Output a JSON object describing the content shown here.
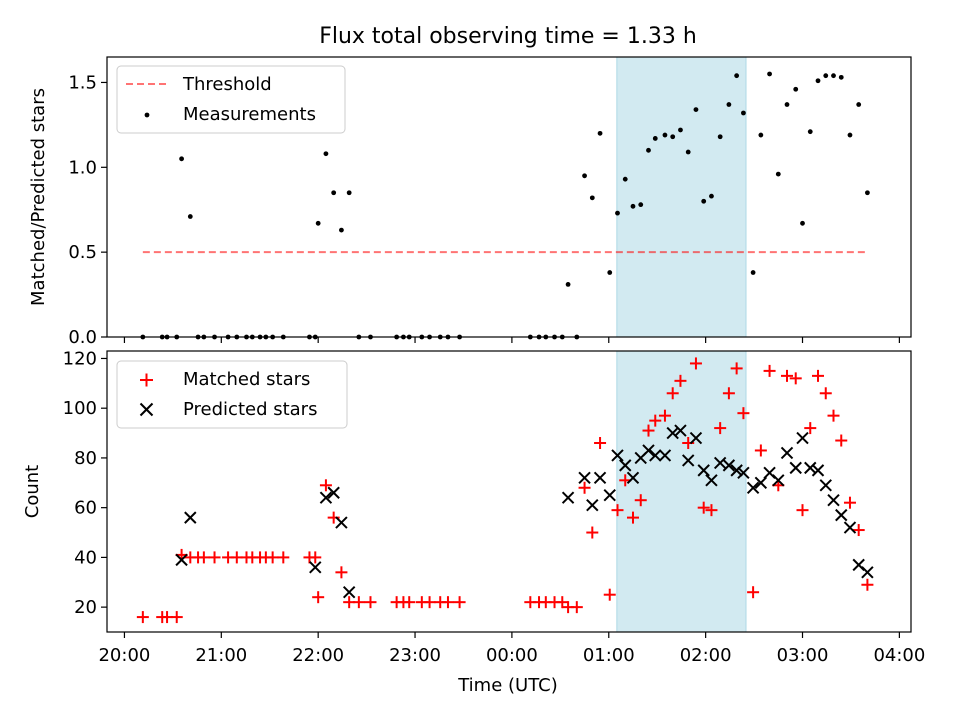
{
  "figure": {
    "title": "Flux total observing time = 1.33 h",
    "xlabel": "Time (UTC)",
    "xticks": [
      "20:00",
      "21:00",
      "22:00",
      "23:00",
      "00:00",
      "01:00",
      "02:00",
      "03:00",
      "04:00"
    ]
  },
  "chart_data": [
    {
      "type": "scatter",
      "title": "Flux total observing time = 1.33 h",
      "xlabel": "",
      "ylabel": "Matched/Predicted stars",
      "x_unit": "hours since 20:00 UTC",
      "xlim": [
        -0.18,
        8.12
      ],
      "ylim": [
        0,
        1.65
      ],
      "yticks": [
        "0.0",
        "0.5",
        "1.0",
        "1.5"
      ],
      "highlight_span": {
        "from": "01:05",
        "to": "02:25",
        "color": "#add8e6"
      },
      "threshold": {
        "name": "Threshold",
        "value": 0.5,
        "x": [
          0.19,
          7.67
        ],
        "color": "#ff0000",
        "style": "dashed"
      },
      "legend": {
        "location": "upper left",
        "entries": [
          "Threshold",
          "Measurements"
        ]
      },
      "series": [
        {
          "name": "Measurements",
          "color": "#000000",
          "marker": "dot",
          "points": [
            [
              0.19,
              0
            ],
            [
              0.39,
              0
            ],
            [
              0.44,
              0
            ],
            [
              0.54,
              0
            ],
            [
              0.59,
              1.05
            ],
            [
              0.68,
              0.71
            ],
            [
              0.76,
              0
            ],
            [
              0.82,
              0
            ],
            [
              0.93,
              0
            ],
            [
              1.07,
              0
            ],
            [
              1.16,
              0
            ],
            [
              1.26,
              0
            ],
            [
              1.32,
              0
            ],
            [
              1.4,
              0
            ],
            [
              1.46,
              0
            ],
            [
              1.53,
              0
            ],
            [
              1.64,
              0
            ],
            [
              1.91,
              0
            ],
            [
              1.97,
              0
            ],
            [
              2.0,
              0.67
            ],
            [
              2.08,
              1.08
            ],
            [
              2.16,
              0.85
            ],
            [
              2.24,
              0.63
            ],
            [
              2.32,
              0.85
            ],
            [
              2.42,
              0
            ],
            [
              2.54,
              0
            ],
            [
              2.81,
              0
            ],
            [
              2.88,
              0
            ],
            [
              2.94,
              0
            ],
            [
              3.07,
              0
            ],
            [
              3.15,
              0
            ],
            [
              3.26,
              0
            ],
            [
              3.34,
              0
            ],
            [
              3.46,
              0
            ],
            [
              4.19,
              0
            ],
            [
              4.28,
              0
            ],
            [
              4.35,
              0
            ],
            [
              4.44,
              0
            ],
            [
              4.52,
              0
            ],
            [
              4.58,
              0.31
            ],
            [
              4.67,
              0
            ],
            [
              4.75,
              0.95
            ],
            [
              4.83,
              0.82
            ],
            [
              4.91,
              1.2
            ],
            [
              5.01,
              0.38
            ],
            [
              5.09,
              0.73
            ],
            [
              5.17,
              0.93
            ],
            [
              5.25,
              0.77
            ],
            [
              5.33,
              0.78
            ],
            [
              5.41,
              1.1
            ],
            [
              5.48,
              1.17
            ],
            [
              5.58,
              1.19
            ],
            [
              5.66,
              1.18
            ],
            [
              5.74,
              1.22
            ],
            [
              5.82,
              1.09
            ],
            [
              5.9,
              1.34
            ],
            [
              5.98,
              0.8
            ],
            [
              6.06,
              0.83
            ],
            [
              6.15,
              1.18
            ],
            [
              6.24,
              1.37
            ],
            [
              6.32,
              1.54
            ],
            [
              6.39,
              1.32
            ],
            [
              6.49,
              0.38
            ],
            [
              6.57,
              1.19
            ],
            [
              6.66,
              1.55
            ],
            [
              6.75,
              0.96
            ],
            [
              6.84,
              1.37
            ],
            [
              6.93,
              1.46
            ],
            [
              7.0,
              0.67
            ],
            [
              7.08,
              1.21
            ],
            [
              7.16,
              1.51
            ],
            [
              7.24,
              1.54
            ],
            [
              7.32,
              1.54
            ],
            [
              7.4,
              1.53
            ],
            [
              7.49,
              1.19
            ],
            [
              7.58,
              1.37
            ],
            [
              7.67,
              0.85
            ]
          ]
        }
      ]
    },
    {
      "type": "scatter",
      "title": "",
      "xlabel": "Time (UTC)",
      "ylabel": "Count",
      "x_unit": "hours since 20:00 UTC",
      "xlim": [
        -0.18,
        8.12
      ],
      "ylim": [
        10,
        123
      ],
      "yticks": [
        "20",
        "40",
        "60",
        "80",
        "100",
        "120"
      ],
      "highlight_span": {
        "from": "01:05",
        "to": "02:25",
        "color": "#add8e6"
      },
      "legend": {
        "location": "upper left",
        "entries": [
          "Matched stars",
          "Predicted stars"
        ]
      },
      "series": [
        {
          "name": "Matched stars",
          "color": "#ff0000",
          "marker": "plus",
          "points": [
            [
              0.19,
              16
            ],
            [
              0.39,
              16
            ],
            [
              0.44,
              16
            ],
            [
              0.54,
              16
            ],
            [
              0.59,
              41
            ],
            [
              0.68,
              40
            ],
            [
              0.76,
              40
            ],
            [
              0.82,
              40
            ],
            [
              0.93,
              40
            ],
            [
              1.07,
              40
            ],
            [
              1.16,
              40
            ],
            [
              1.26,
              40
            ],
            [
              1.32,
              40
            ],
            [
              1.4,
              40
            ],
            [
              1.46,
              40
            ],
            [
              1.53,
              40
            ],
            [
              1.64,
              40
            ],
            [
              1.91,
              40
            ],
            [
              1.97,
              40
            ],
            [
              2.0,
              24
            ],
            [
              2.08,
              69
            ],
            [
              2.16,
              56
            ],
            [
              2.24,
              34
            ],
            [
              2.32,
              22
            ],
            [
              2.42,
              22
            ],
            [
              2.54,
              22
            ],
            [
              2.81,
              22
            ],
            [
              2.88,
              22
            ],
            [
              2.94,
              22
            ],
            [
              3.07,
              22
            ],
            [
              3.15,
              22
            ],
            [
              3.26,
              22
            ],
            [
              3.34,
              22
            ],
            [
              3.46,
              22
            ],
            [
              4.19,
              22
            ],
            [
              4.28,
              22
            ],
            [
              4.35,
              22
            ],
            [
              4.44,
              22
            ],
            [
              4.52,
              22
            ],
            [
              4.58,
              20
            ],
            [
              4.67,
              20
            ],
            [
              4.75,
              68
            ],
            [
              4.83,
              50
            ],
            [
              4.91,
              86
            ],
            [
              5.01,
              25
            ],
            [
              5.09,
              59
            ],
            [
              5.17,
              71
            ],
            [
              5.25,
              56
            ],
            [
              5.33,
              63
            ],
            [
              5.41,
              91
            ],
            [
              5.48,
              95
            ],
            [
              5.58,
              97
            ],
            [
              5.66,
              106
            ],
            [
              5.74,
              111
            ],
            [
              5.82,
              86
            ],
            [
              5.9,
              118
            ],
            [
              5.98,
              60
            ],
            [
              6.06,
              59
            ],
            [
              6.15,
              92
            ],
            [
              6.24,
              106
            ],
            [
              6.32,
              116
            ],
            [
              6.39,
              98
            ],
            [
              6.49,
              26
            ],
            [
              6.57,
              83
            ],
            [
              6.66,
              115
            ],
            [
              6.75,
              69
            ],
            [
              6.84,
              113
            ],
            [
              6.93,
              112
            ],
            [
              7.0,
              59
            ],
            [
              7.08,
              92
            ],
            [
              7.16,
              113
            ],
            [
              7.24,
              106
            ],
            [
              7.32,
              97
            ],
            [
              7.4,
              87
            ],
            [
              7.49,
              62
            ],
            [
              7.58,
              51
            ],
            [
              7.67,
              29
            ]
          ]
        },
        {
          "name": "Predicted stars",
          "color": "#000000",
          "marker": "x",
          "points": [
            [
              0.59,
              39
            ],
            [
              0.68,
              56
            ],
            [
              1.97,
              36
            ],
            [
              2.08,
              64
            ],
            [
              2.16,
              66
            ],
            [
              2.24,
              54
            ],
            [
              2.32,
              26
            ],
            [
              4.58,
              64
            ],
            [
              4.75,
              72
            ],
            [
              4.83,
              61
            ],
            [
              4.91,
              72
            ],
            [
              5.01,
              65
            ],
            [
              5.09,
              81
            ],
            [
              5.17,
              77
            ],
            [
              5.25,
              72
            ],
            [
              5.33,
              80
            ],
            [
              5.41,
              83
            ],
            [
              5.48,
              81
            ],
            [
              5.58,
              81
            ],
            [
              5.66,
              90
            ],
            [
              5.74,
              91
            ],
            [
              5.82,
              79
            ],
            [
              5.9,
              88
            ],
            [
              5.98,
              75
            ],
            [
              6.06,
              71
            ],
            [
              6.15,
              78
            ],
            [
              6.24,
              77
            ],
            [
              6.32,
              75
            ],
            [
              6.39,
              74
            ],
            [
              6.49,
              68
            ],
            [
              6.57,
              70
            ],
            [
              6.66,
              74
            ],
            [
              6.75,
              71
            ],
            [
              6.84,
              82
            ],
            [
              6.93,
              76
            ],
            [
              7.0,
              88
            ],
            [
              7.08,
              76
            ],
            [
              7.16,
              75
            ],
            [
              7.24,
              69
            ],
            [
              7.32,
              63
            ],
            [
              7.4,
              57
            ],
            [
              7.49,
              52
            ],
            [
              7.58,
              37
            ],
            [
              7.67,
              34
            ]
          ]
        }
      ]
    }
  ]
}
